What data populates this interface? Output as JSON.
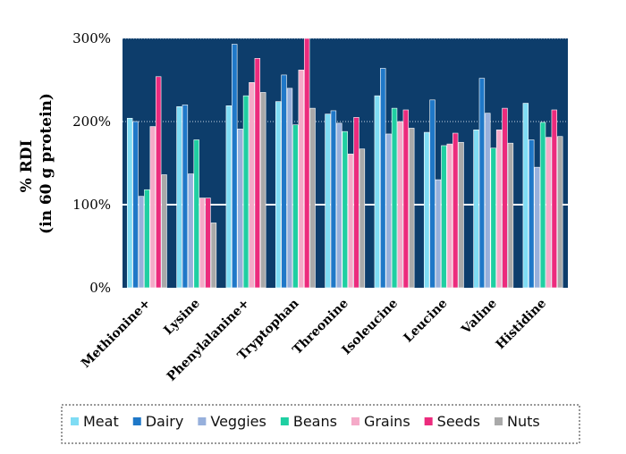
{
  "chart_data": {
    "type": "bar",
    "title": "",
    "ylabel_lines": [
      "% RDI",
      "(in 60 g protein)"
    ],
    "xlabel": "",
    "ylim": [
      0,
      300
    ],
    "yticks": [
      0,
      100,
      200,
      300
    ],
    "ytick_labels": [
      "0%",
      "100%",
      "200%",
      "300%"
    ],
    "grid": "dotted at 200% and 300%, solid white line at 100%",
    "plot_background": "#0d3d6b",
    "legend_position": "bottom, dotted border",
    "categories": [
      "Methionine+",
      "Lysine",
      "Phenylalanine+",
      "Tryptophan",
      "Threonine",
      "Isoleucine",
      "Leucine",
      "Valine",
      "Histidine"
    ],
    "series": [
      {
        "name": "Meat",
        "color": "#7fdcf4",
        "values": [
          204,
          218,
          219,
          224,
          209,
          231,
          187,
          190,
          222
        ]
      },
      {
        "name": "Dairy",
        "color": "#1f78c8",
        "values": [
          200,
          220,
          293,
          256,
          213,
          264,
          226,
          252,
          178
        ]
      },
      {
        "name": "Veggies",
        "color": "#97b0dc",
        "values": [
          110,
          137,
          191,
          240,
          198,
          185,
          130,
          210,
          145
        ]
      },
      {
        "name": "Beans",
        "color": "#1fcfa2",
        "values": [
          118,
          178,
          231,
          196,
          188,
          216,
          171,
          168,
          199
        ]
      },
      {
        "name": "Grains",
        "color": "#f5aac8",
        "values": [
          194,
          108,
          247,
          262,
          161,
          200,
          173,
          190,
          181
        ]
      },
      {
        "name": "Seeds",
        "color": "#ec2b7d",
        "values": [
          254,
          108,
          276,
          300,
          205,
          214,
          186,
          216,
          214
        ]
      },
      {
        "name": "Nuts",
        "color": "#a9a9a9",
        "values": [
          136,
          78,
          235,
          216,
          167,
          192,
          175,
          174,
          182
        ]
      }
    ]
  }
}
